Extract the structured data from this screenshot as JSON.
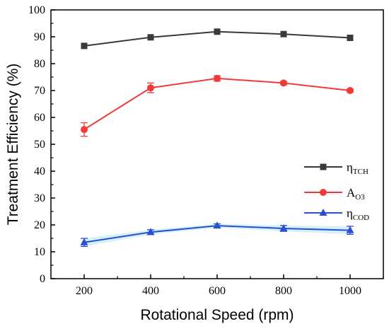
{
  "chart_data": {
    "type": "line",
    "xlabel": "Rotational Speed (rpm)",
    "ylabel": "Treatment Efficiency (%)",
    "x": [
      200,
      400,
      600,
      800,
      1000
    ],
    "xlim": [
      100,
      1100
    ],
    "ylim": [
      0,
      100
    ],
    "x_ticks": [
      "200",
      "400",
      "600",
      "800",
      "1000"
    ],
    "y_ticks": [
      "0",
      "10",
      "20",
      "30",
      "40",
      "50",
      "60",
      "70",
      "80",
      "90",
      "100"
    ],
    "grid": false,
    "legend_position": "right",
    "series": [
      {
        "name_main": "η",
        "name_sub": "TCH",
        "marker": "square",
        "color": "#3a3a3a",
        "values": [
          86.6,
          89.8,
          91.9,
          91.0,
          89.6
        ],
        "errors": [
          0,
          0,
          0,
          0,
          0
        ]
      },
      {
        "name_main": "A",
        "name_sub": "O3",
        "marker": "circle",
        "color": "#f03a3a",
        "values": [
          55.5,
          71.0,
          74.5,
          72.8,
          70.0
        ],
        "errors": [
          2.5,
          1.8,
          1.0,
          0.6,
          0.5
        ]
      },
      {
        "name_main": "η",
        "name_sub": "COD",
        "marker": "triangle",
        "color": "#2a4fd0",
        "band_color": "#cdeefc",
        "values": [
          13.5,
          17.3,
          19.7,
          18.7,
          18.0
        ],
        "errors": [
          1.5,
          0.9,
          0.7,
          1.1,
          1.5
        ]
      }
    ]
  }
}
